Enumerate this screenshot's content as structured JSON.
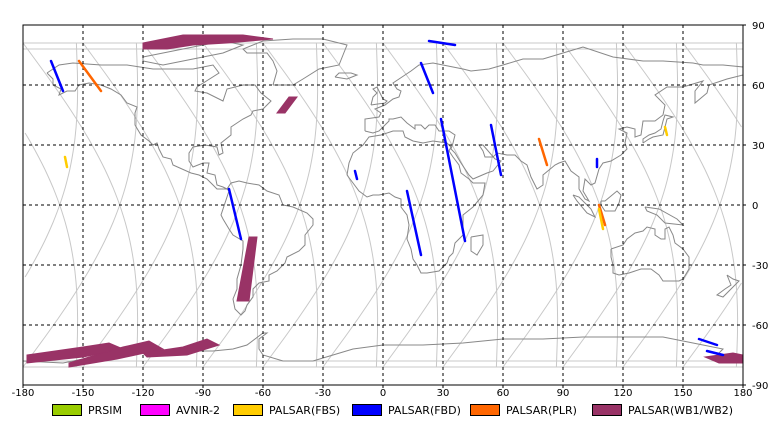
{
  "chart_data": {
    "type": "map",
    "projection": "equirectangular",
    "xlim": [
      -180,
      180
    ],
    "ylim": [
      -90,
      90
    ],
    "x_ticks": [
      -180,
      -150,
      -120,
      -90,
      -60,
      -30,
      0,
      30,
      60,
      90,
      120,
      150,
      180
    ],
    "y_ticks": [
      90,
      60,
      30,
      0,
      -30,
      -60,
      -90
    ],
    "grid": "dashed",
    "legend_position": "bottom",
    "legend": [
      {
        "label": "PRSIM",
        "color": "#99cc00"
      },
      {
        "label": "AVNIR-2",
        "color": "#ff00ff"
      },
      {
        "label": "PALSAR(FBS)",
        "color": "#ffcc00"
      },
      {
        "label": "PALSAR(FBD)",
        "color": "#0000ff"
      },
      {
        "label": "PALSAR(PLR)",
        "color": "#ff6600"
      },
      {
        "label": "PALSAR(WB1/WB2)",
        "color": "#993366"
      }
    ],
    "swaths": [
      {
        "mode": "PALSAR(WB1/WB2)",
        "polygon": [
          [
            -120,
            81
          ],
          [
            -100,
            85
          ],
          [
            -70,
            85
          ],
          [
            -55,
            83
          ],
          [
            -78,
            81
          ],
          [
            -95,
            80
          ],
          [
            -108,
            78
          ],
          [
            -120,
            78
          ]
        ]
      },
      {
        "mode": "PALSAR(WB1/WB2)",
        "polygon": [
          [
            -47,
            54
          ],
          [
            -43,
            54
          ],
          [
            -49,
            46
          ],
          [
            -53,
            46
          ]
        ]
      },
      {
        "mode": "PALSAR(WB1/WB2)",
        "polygon": [
          [
            -67,
            -16
          ],
          [
            -63,
            -16
          ],
          [
            -67,
            -48
          ],
          [
            -73,
            -48
          ]
        ]
      },
      {
        "mode": "PALSAR(WB1/WB2)",
        "polygon": [
          [
            -178,
            -75
          ],
          [
            -150,
            -71
          ],
          [
            -137,
            -69
          ],
          [
            -130,
            -72
          ],
          [
            -150,
            -76
          ],
          [
            -178,
            -79
          ]
        ]
      },
      {
        "mode": "PALSAR(WB1/WB2)",
        "polygon": [
          [
            -157,
            -79
          ],
          [
            -130,
            -71
          ],
          [
            -117,
            -68
          ],
          [
            -110,
            -72
          ],
          [
            -133,
            -77
          ],
          [
            -157,
            -81
          ]
        ]
      },
      {
        "mode": "PALSAR(WB1/WB2)",
        "polygon": [
          [
            -120,
            -74
          ],
          [
            -100,
            -71
          ],
          [
            -88,
            -67
          ],
          [
            -82,
            -70
          ],
          [
            -98,
            -75
          ],
          [
            -118,
            -76
          ]
        ]
      },
      {
        "mode": "PALSAR(WB1/WB2)",
        "polygon": [
          [
            161,
            -76
          ],
          [
            175,
            -74
          ],
          [
            180,
            -75
          ],
          [
            180,
            -79
          ],
          [
            168,
            -79
          ]
        ]
      },
      {
        "mode": "PALSAR(FBD)",
        "line": [
          [
            -166,
            72
          ],
          [
            -160,
            57
          ]
        ]
      },
      {
        "mode": "PALSAR(FBD)",
        "line": [
          [
            -77,
            8
          ],
          [
            -71,
            -17
          ]
        ]
      },
      {
        "mode": "PALSAR(FBD)",
        "line": [
          [
            -14,
            17
          ],
          [
            -13,
            13
          ]
        ]
      },
      {
        "mode": "PALSAR(FBD)",
        "line": [
          [
            12,
            7
          ],
          [
            19,
            -25
          ]
        ]
      },
      {
        "mode": "PALSAR(FBD)",
        "line": [
          [
            29,
            43
          ],
          [
            41,
            -18
          ]
        ]
      },
      {
        "mode": "PALSAR(FBD)",
        "line": [
          [
            19,
            71
          ],
          [
            25,
            56
          ]
        ]
      },
      {
        "mode": "PALSAR(FBD)",
        "line": [
          [
            23,
            82
          ],
          [
            36,
            80
          ]
        ]
      },
      {
        "mode": "PALSAR(FBD)",
        "line": [
          [
            54,
            40
          ],
          [
            59,
            15
          ]
        ]
      },
      {
        "mode": "PALSAR(FBD)",
        "line": [
          [
            107,
            23
          ],
          [
            107,
            19
          ]
        ]
      },
      {
        "mode": "PALSAR(FBD)",
        "line": [
          [
            158,
            -67
          ],
          [
            167,
            -70
          ]
        ]
      },
      {
        "mode": "PALSAR(FBD)",
        "line": [
          [
            162,
            -73
          ],
          [
            170,
            -75
          ]
        ]
      },
      {
        "mode": "PALSAR(PLR)",
        "line": [
          [
            -152,
            72
          ],
          [
            -141,
            57
          ]
        ]
      },
      {
        "mode": "PALSAR(PLR)",
        "line": [
          [
            78,
            33
          ],
          [
            82,
            20
          ]
        ]
      },
      {
        "mode": "PALSAR(PLR)",
        "line": [
          [
            108,
            0
          ],
          [
            111,
            -10
          ]
        ]
      },
      {
        "mode": "PALSAR(FBS)",
        "line": [
          [
            -159,
            24
          ],
          [
            -158,
            19
          ]
        ]
      },
      {
        "mode": "PALSAR(FBS)",
        "line": [
          [
            141,
            39
          ],
          [
            142,
            35
          ]
        ]
      },
      {
        "mode": "PALSAR(FBS)",
        "line": [
          [
            108,
            -2
          ],
          [
            110,
            -12
          ]
        ]
      }
    ]
  },
  "map": {
    "coast_color": "#888888",
    "orbit_color": "#c8c8c8"
  }
}
